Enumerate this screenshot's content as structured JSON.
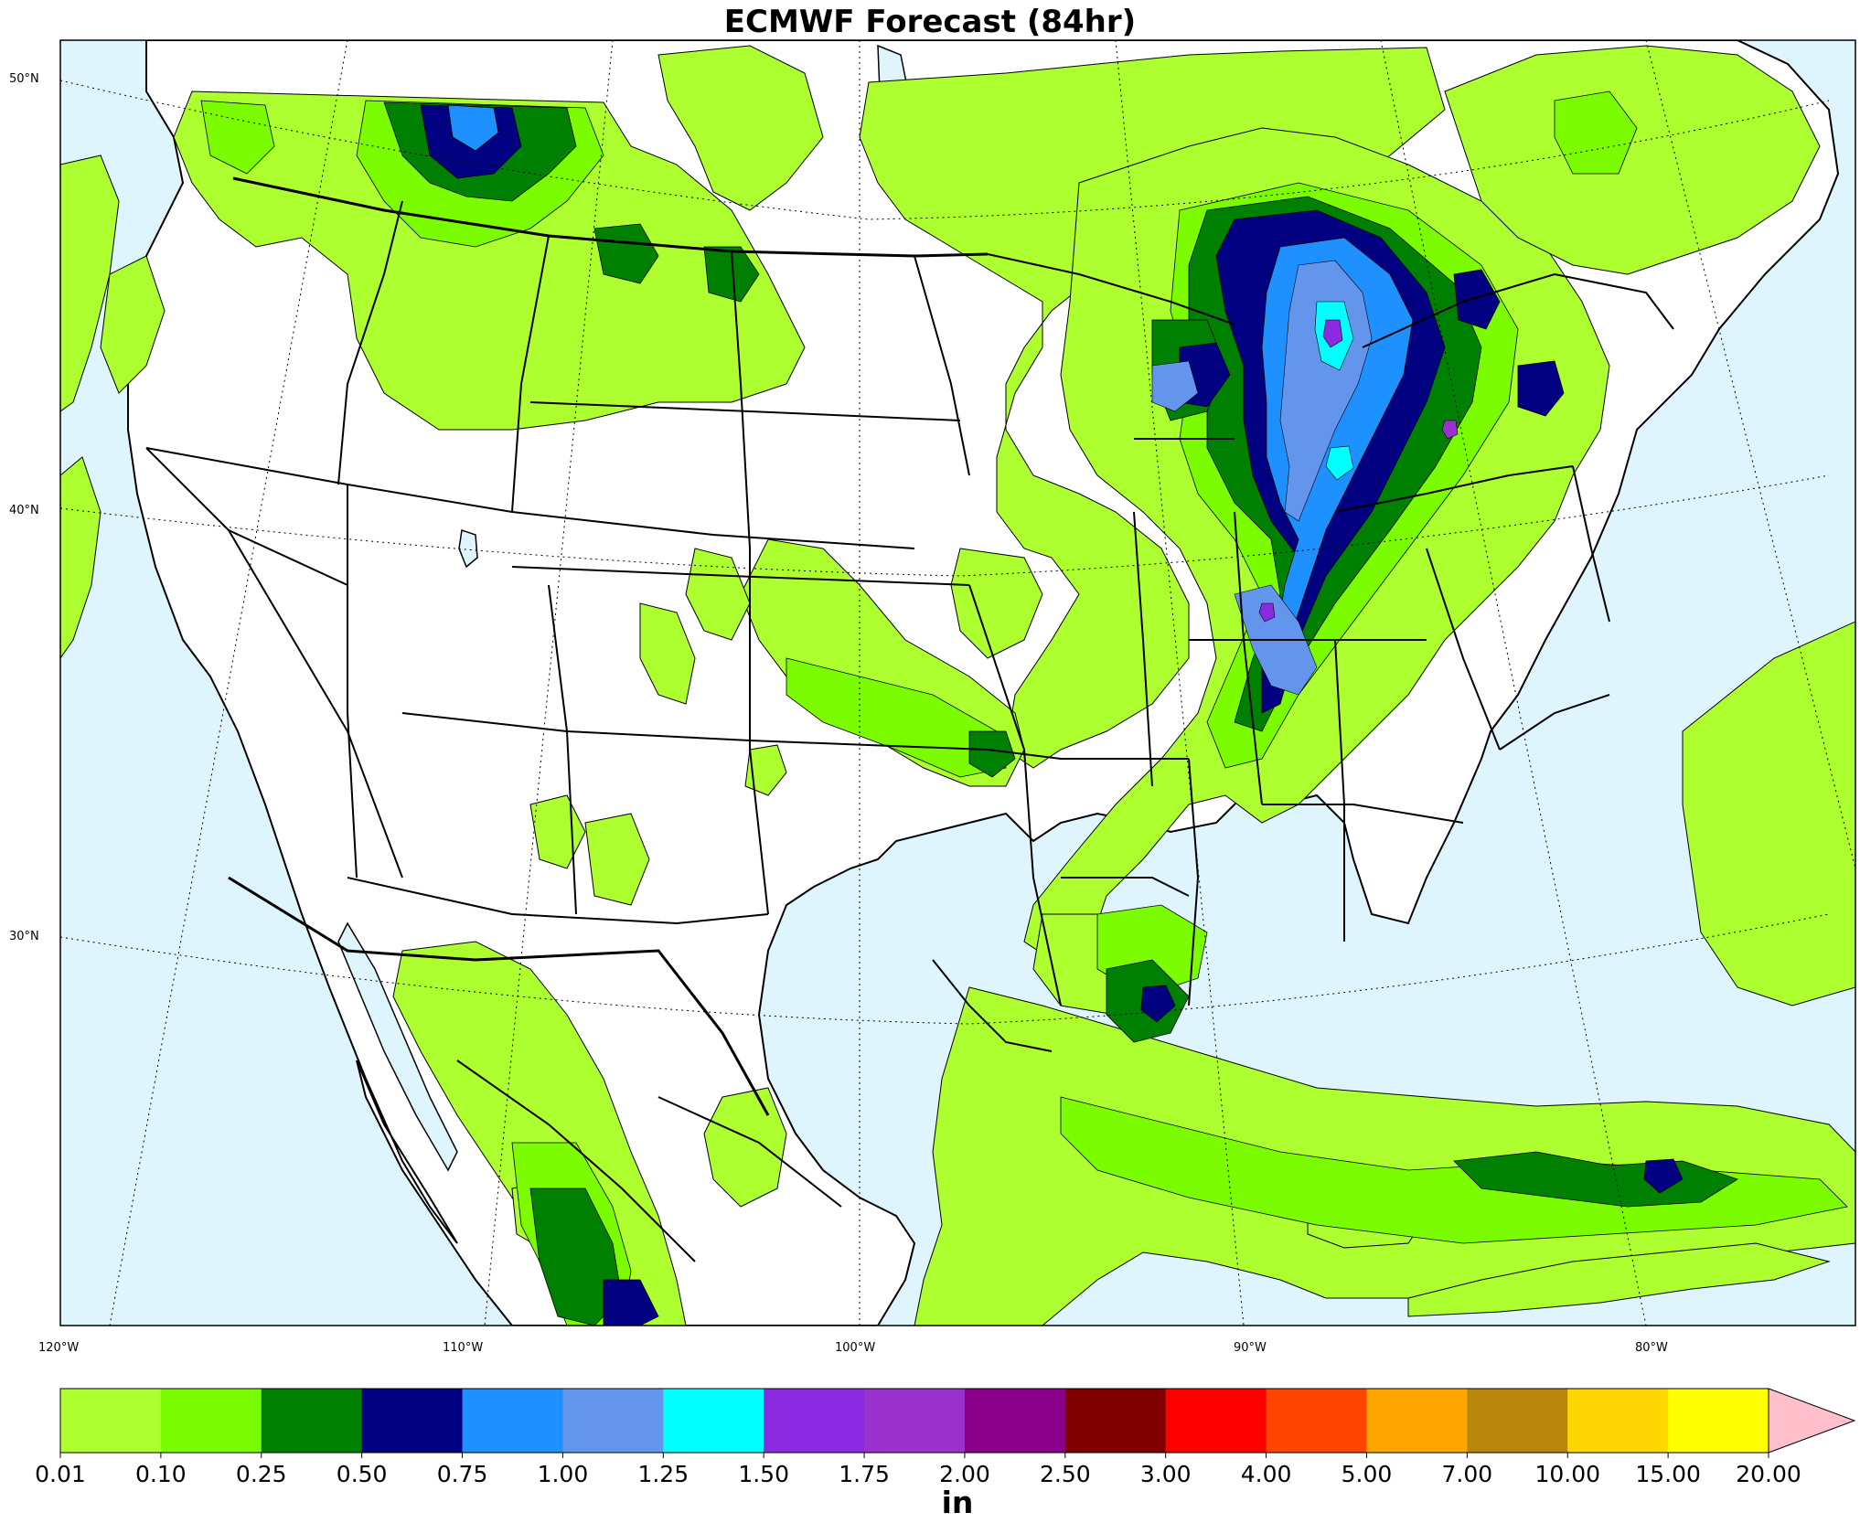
{
  "title": "ECMWF Forecast (84hr)",
  "map": {
    "lat_labels": [
      "50°N",
      "40°N",
      "30°N"
    ],
    "lon_labels": [
      "120°W",
      "110°W",
      "100°W",
      "90°W",
      "80°W"
    ]
  },
  "colorbar": {
    "unit": "in",
    "ticks": [
      "0.01",
      "0.10",
      "0.25",
      "0.50",
      "0.75",
      "1.00",
      "1.25",
      "1.50",
      "1.75",
      "2.00",
      "2.50",
      "3.00",
      "4.00",
      "5.00",
      "7.00",
      "10.00",
      "15.00",
      "20.00"
    ],
    "colors": [
      "#adff2f",
      "#7cfc00",
      "#008000",
      "#000080",
      "#1e90ff",
      "#6495ed",
      "#00ffff",
      "#8a2be2",
      "#9932cc",
      "#8b008b",
      "#800000",
      "#ff0000",
      "#ff4500",
      "#ffa500",
      "#b8860b",
      "#ffd700",
      "#ffff00"
    ],
    "extend_color": "#ffc0cb"
  },
  "colors": {
    "water": "#dff5fd",
    "land": "#ffffff"
  }
}
